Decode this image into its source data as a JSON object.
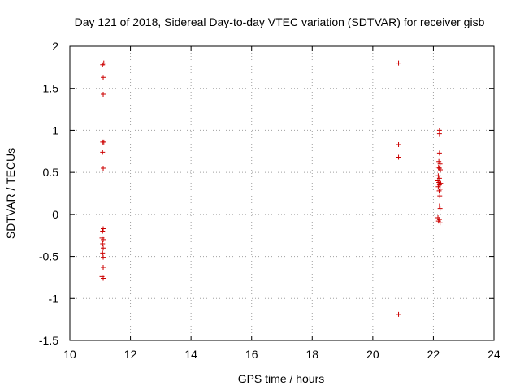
{
  "chart_data": {
    "type": "scatter",
    "title": "Day 121 of 2018, Sidereal Day-to-day VTEC variation (SDTVAR) for receiver gisb",
    "xlabel": "GPS time / hours",
    "ylabel": "SDTVAR / TECUs",
    "xlim": [
      10,
      24
    ],
    "ylim": [
      -1.5,
      2
    ],
    "xticks": [
      10,
      12,
      14,
      16,
      18,
      20,
      22,
      24
    ],
    "yticks": [
      -1.5,
      -1,
      -0.5,
      0,
      0.5,
      1,
      1.5,
      2
    ],
    "xtick_labels": [
      "10",
      "12",
      "14",
      "16",
      "18",
      "20",
      "22",
      "24"
    ],
    "ytick_labels": [
      "-1.5",
      "-1",
      "-0.5",
      "0",
      "0.5",
      "1",
      "1.5",
      "2"
    ],
    "grid": true,
    "marker": "+",
    "color": "#cc0000",
    "series": [
      {
        "name": "SDTVAR",
        "points": [
          [
            11.08,
            1.78
          ],
          [
            11.12,
            1.8
          ],
          [
            11.1,
            1.63
          ],
          [
            11.1,
            1.43
          ],
          [
            11.08,
            0.86
          ],
          [
            11.12,
            0.86
          ],
          [
            11.08,
            0.74
          ],
          [
            11.1,
            0.55
          ],
          [
            11.1,
            -0.17
          ],
          [
            11.08,
            -0.2
          ],
          [
            11.06,
            -0.28
          ],
          [
            11.1,
            -0.3
          ],
          [
            11.08,
            -0.35
          ],
          [
            11.1,
            -0.4
          ],
          [
            11.08,
            -0.46
          ],
          [
            11.1,
            -0.51
          ],
          [
            11.1,
            -0.63
          ],
          [
            11.06,
            -0.74
          ],
          [
            11.1,
            -0.76
          ],
          [
            20.85,
            1.8
          ],
          [
            20.85,
            0.83
          ],
          [
            20.85,
            0.68
          ],
          [
            20.85,
            -1.19
          ],
          [
            22.2,
            1.0
          ],
          [
            22.2,
            0.96
          ],
          [
            22.2,
            0.73
          ],
          [
            22.18,
            0.63
          ],
          [
            22.22,
            0.6
          ],
          [
            22.17,
            0.56
          ],
          [
            22.2,
            0.55
          ],
          [
            22.23,
            0.53
          ],
          [
            22.16,
            0.46
          ],
          [
            22.2,
            0.43
          ],
          [
            22.15,
            0.4
          ],
          [
            22.18,
            0.38
          ],
          [
            22.24,
            0.37
          ],
          [
            22.2,
            0.35
          ],
          [
            22.16,
            0.33
          ],
          [
            22.22,
            0.3
          ],
          [
            22.19,
            0.28
          ],
          [
            22.21,
            0.22
          ],
          [
            22.2,
            0.1
          ],
          [
            22.22,
            0.07
          ],
          [
            22.15,
            -0.04
          ],
          [
            22.2,
            -0.06
          ],
          [
            22.17,
            -0.08
          ],
          [
            22.22,
            -0.1
          ]
        ]
      }
    ]
  }
}
